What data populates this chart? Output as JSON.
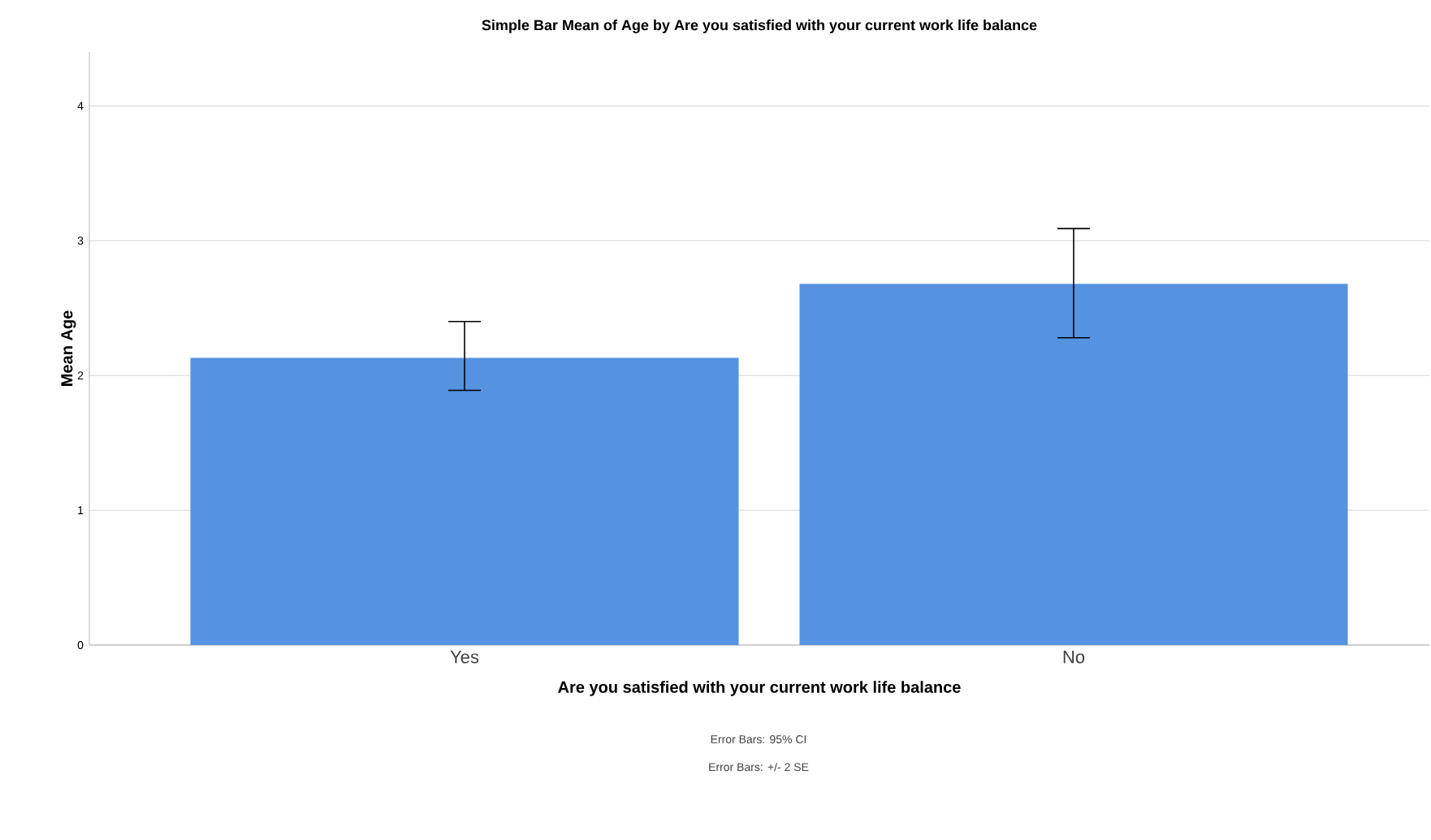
{
  "chart_data": {
    "type": "bar",
    "title": "Simple Bar Mean of Age by Are you satisfied with your current work life balance",
    "xlabel": "Are you satisfied with your current work life balance",
    "ylabel": "Mean Age",
    "categories": [
      "Yes",
      "No"
    ],
    "values": [
      2.13,
      2.68
    ],
    "color": "#5592e0",
    "errors": [
      [
        1.89,
        2.4
      ],
      [
        2.28,
        3.09
      ]
    ],
    "ylim": [
      0,
      4.4
    ],
    "yticks": [
      0,
      1,
      2,
      3,
      4
    ],
    "grid": "y",
    "annotations": [
      "Error Bars: 95% CI",
      "Error Bars: +/- 2 SE"
    ]
  }
}
